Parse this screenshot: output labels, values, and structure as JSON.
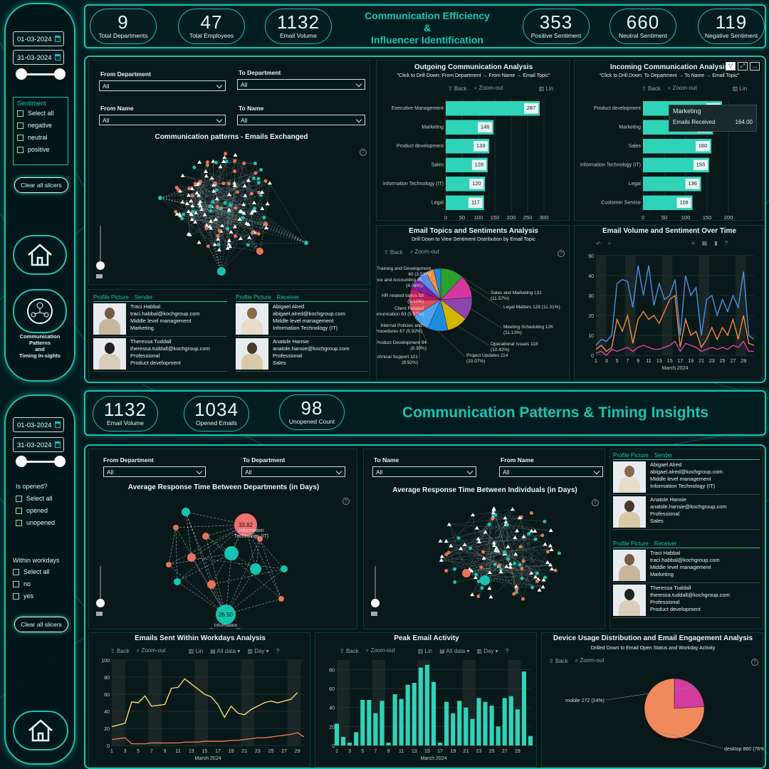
{
  "colors": {
    "accent": "#17c4b2",
    "bar": "#2fd3b8",
    "orange": "#f08a3e",
    "blue": "#4a90e2",
    "pink": "#e040a0",
    "yellow": "#f5d76e",
    "coral": "#e8735a"
  },
  "top": {
    "sidebar": {
      "date_from": "01-03-2024",
      "date_to": "31-03-2024",
      "sentiment_title": "Sentiment",
      "options": [
        "Select all",
        "negative",
        "neutral",
        "positive"
      ],
      "clear": "Clear all slicers",
      "nav_label_lines": [
        "Communication",
        "Patterns",
        "and",
        "Timing In-sights"
      ],
      "home_icon": "home-icon",
      "nav_icon": "network-icon"
    },
    "kpis_left": [
      {
        "v": "9",
        "l": "Total Departments"
      },
      {
        "v": "47",
        "l": "Total Employees"
      },
      {
        "v": "1132",
        "l": "Email Volume"
      }
    ],
    "title_lines": [
      "Communication Efficiency",
      "&",
      "Influencer Identification"
    ],
    "kpis_right": [
      {
        "v": "353",
        "l": "Positive Sentiment"
      },
      {
        "v": "660",
        "l": "Neutral Sentiment"
      },
      {
        "v": "119",
        "l": "Negative Sentiment"
      }
    ],
    "filters": {
      "from_department": "From Department",
      "to_department": "To Department",
      "from_name": "From Name",
      "to_name": "To Name",
      "all": "All"
    },
    "network_title": "Communication patterns - Emails Exchanged",
    "sender_table": {
      "h1": "Profile Picture",
      "h2": "Sender",
      "rows": [
        [
          "Traci Habbal",
          "traci.habbal@kochgroup.com",
          "Middle level management",
          "Marketing"
        ],
        [
          "Theressa Tuddall",
          "theressa.tuddall@kochgroup.com",
          "Professional",
          "Product development"
        ]
      ]
    },
    "receiver_table": {
      "h1": "Profile Picture",
      "h2": "Receiver",
      "rows": [
        [
          "Abigael Alred",
          "abigael.alred@kochgroup.com",
          "Middle level management",
          "Information Technology (IT)"
        ],
        [
          "Anatole Hansie",
          "anatole.hansie@kochgroup.com",
          "Professional",
          "Sales"
        ]
      ]
    },
    "outgoing": {
      "title": "Outgoing Communication Analysis",
      "sub": "\"Click to Drill Down: From Department → From Name → Email Topic\"",
      "back": "Back",
      "zoom": "Zoom-out",
      "lin": "Lin"
    },
    "incoming": {
      "title": "Incoming Communication Analysis",
      "sub": "\"Click to Drill Down: To Department → To Name → Email Topic\"",
      "back": "Back",
      "zoom": "Zoom-out",
      "lin": "Lin",
      "tooltip_title": "Marketing",
      "tooltip_label": "Emails Received",
      "tooltip_value": "164.00"
    },
    "topics": {
      "title": "Email Topics and Sentiments Analysis",
      "sub": "Drill Down to View Sentiment Distribution by Email Topic",
      "back": "Back",
      "zoom": "Zoom-out"
    },
    "volume": {
      "title": "Email Volume and Sentiment Over Time",
      "xlabel": "March 2024"
    }
  },
  "bottom": {
    "sidebar": {
      "date_from": "01-03-2024",
      "date_to": "31-03-2024",
      "opened_title": "Is opened?",
      "opened_options": [
        "Select all",
        "opened",
        "unopened"
      ],
      "workdays_title": "Within workdays",
      "workdays_options": [
        "Select all",
        "no",
        "yes"
      ],
      "clear": "Clear all slicers",
      "home_icon": "home-icon"
    },
    "kpis": [
      {
        "v": "1132",
        "l": "Email Volume"
      },
      {
        "v": "1034",
        "l": "Opened Emails"
      },
      {
        "v": "98",
        "l": "Unopened Count"
      }
    ],
    "title": "Communication Patterns & Timing Insights",
    "dept_panel": {
      "from": "From Department",
      "to": "To Department",
      "all": "All",
      "title": "Average Response Time Between Departments (in Days)",
      "node1_val": "33.82",
      "node1_label_lines": [
        "Information",
        "Technology (IT)"
      ],
      "node2_val": "26.50",
      "node2_label_lines": [
        "Information",
        "Technology (IT)"
      ],
      "node3_label": "Management"
    },
    "indiv_panel": {
      "to": "To Name",
      "from": "From Name",
      "all": "All",
      "title": "Average Response Time Between Individuals (in Days)"
    },
    "sender_table": {
      "h1": "Profile Picture",
      "h2": "Sender",
      "rows": [
        [
          "Abigael Alred",
          "abigael.alred@kochgroup.com",
          "Middle level management",
          "Information Technology (IT)"
        ],
        [
          "Anatole Hansie",
          "anatole.hansie@kochgroup.com",
          "Professional",
          "Sales"
        ]
      ]
    },
    "receiver_table": {
      "h1": "Profile Picture",
      "h2": "Receiver",
      "rows": [
        [
          "Traci Habbal",
          "traci.habbal@kochgroup.com",
          "Middle level management",
          "Marketing"
        ],
        [
          "Theressa Tuddall",
          "theressa.tuddall@kochgroup.com",
          "Professional",
          "Product development"
        ]
      ]
    },
    "workdays": {
      "title": "Emails Sent Within Workdays Analysis",
      "back": "Back",
      "zoom": "Zoom-out",
      "lin": "Lin",
      "alldata": "All data",
      "day": "Day",
      "xlabel": "March 2024"
    },
    "peak": {
      "title": "Peak Email Activity",
      "back": "Back",
      "zoom": "Zoom-out",
      "lin": "Lin",
      "alldata": "All data",
      "day": "Day",
      "xlabel": "March 2024"
    },
    "device": {
      "title": "Device Usage Distribution and Email Engagement Analysis",
      "sub": "Drilled Down to Email Open Status and Workday Activity",
      "back": "Back",
      "zoom": "Zoom-out"
    }
  },
  "chart_data": [
    {
      "type": "bar",
      "id": "outgoing",
      "categories": [
        "Executive Management",
        "Marketing",
        "Product development",
        "Sales",
        "Information Technology (IT)",
        "Legal"
      ],
      "values": [
        287,
        146,
        133,
        128,
        120,
        117
      ],
      "xlim": [
        0,
        300
      ],
      "xticks": [
        0,
        50,
        100,
        150,
        200,
        250,
        300
      ]
    },
    {
      "type": "bar",
      "id": "incoming",
      "categories": [
        "Product development",
        "Marketing",
        "Sales",
        "Information Technology (IT)",
        "Legal",
        "Customer Service"
      ],
      "values": [
        185,
        164,
        160,
        155,
        136,
        116
      ],
      "xlim": [
        0,
        200
      ],
      "xticks": [
        0,
        50,
        100,
        150,
        200
      ]
    },
    {
      "type": "pie",
      "id": "topics",
      "labels": [
        "Sales and Marketing 131 (11.57%)",
        "Legal Matters 128 (11.31%)",
        "Meeting Scheduling 126 (11.13%)",
        "Operational Issues 118 (10.42%)",
        "Project Updates 114 (10.07%)",
        "Technical Support 101 (8.92%)",
        "Product Development 94 (8.30%)",
        "Internal Policies and Procedures 67 (5.92%)",
        "Client Related Communication 63 (5.57%)",
        "HR related topics 58 (5.12%)",
        "Finance and Accounting 46 (4.06%)",
        "Training and Development 40 (3.53%)"
      ],
      "values": [
        131,
        128,
        126,
        118,
        114,
        101,
        94,
        67,
        63,
        58,
        46,
        40
      ],
      "colors": [
        "#2ca02c",
        "#d6379f",
        "#8e44ad",
        "#d4b400",
        "#1f8be0",
        "#4aa3f0",
        "#e04a5a",
        "#c2185b",
        "#7b1fa2",
        "#5b8def",
        "#f0923e",
        "#1e88e5"
      ]
    },
    {
      "type": "line",
      "id": "volume",
      "x": [
        1,
        2,
        3,
        4,
        5,
        6,
        7,
        8,
        9,
        10,
        11,
        12,
        13,
        14,
        15,
        16,
        17,
        18,
        19,
        20,
        21,
        22,
        23,
        24,
        25,
        26,
        27,
        28,
        29,
        30,
        31
      ],
      "xticks": [
        1,
        3,
        5,
        7,
        9,
        11,
        13,
        15,
        17,
        19,
        21,
        23,
        25,
        27,
        29
      ],
      "ylim": [
        0,
        50
      ],
      "yticks": [
        0,
        10,
        20,
        30,
        40,
        50
      ],
      "series": [
        {
          "color": "#4a90e2",
          "values": [
            5,
            8,
            7,
            10,
            36,
            38,
            37,
            24,
            45,
            30,
            45,
            25,
            36,
            28,
            30,
            38,
            10,
            40,
            30,
            34,
            10,
            28,
            30,
            20,
            28,
            22,
            30,
            24,
            42,
            10,
            8
          ]
        },
        {
          "color": "#f08a3e",
          "values": [
            3,
            5,
            2,
            4,
            18,
            12,
            20,
            6,
            18,
            22,
            18,
            20,
            16,
            22,
            28,
            30,
            4,
            18,
            10,
            12,
            4,
            8,
            14,
            8,
            14,
            10,
            18,
            8,
            20,
            6,
            5
          ]
        },
        {
          "color": "#e040a0",
          "values": [
            1,
            2,
            0,
            3,
            2,
            3,
            4,
            2,
            4,
            5,
            4,
            3,
            3,
            4,
            5,
            7,
            2,
            6,
            5,
            4,
            2,
            3,
            4,
            3,
            4,
            3,
            5,
            4,
            7,
            2,
            2
          ]
        }
      ]
    },
    {
      "type": "line",
      "id": "workdays",
      "x": [
        1,
        2,
        3,
        4,
        5,
        6,
        7,
        8,
        9,
        10,
        11,
        12,
        13,
        14,
        15,
        16,
        17,
        18,
        19,
        20,
        21,
        22,
        23,
        24,
        25,
        26,
        27,
        28,
        29,
        30
      ],
      "xticks": [
        1,
        3,
        5,
        7,
        9,
        11,
        13,
        15,
        17,
        19,
        21,
        23,
        25,
        27,
        29
      ],
      "ylim": [
        0,
        100
      ],
      "yticks": [
        0,
        20,
        40,
        60,
        80,
        100
      ],
      "series": [
        {
          "color": "#f5d76e",
          "values": [
            22,
            24,
            26,
            51,
            50,
            58,
            46,
            47,
            48,
            67,
            68,
            78,
            72,
            66,
            60,
            57,
            48,
            33,
            46,
            38,
            36,
            42,
            46,
            50,
            52,
            50,
            52,
            54,
            62,
            null
          ]
        },
        {
          "color": "#e8735a",
          "values": [
            7,
            8,
            9,
            2,
            2,
            2,
            3,
            3,
            3,
            3,
            3,
            4,
            4,
            4,
            5,
            5,
            5,
            5,
            6,
            6,
            7,
            8,
            9,
            9,
            10,
            11,
            12,
            13,
            15,
            10
          ]
        }
      ]
    },
    {
      "type": "bar",
      "id": "peak",
      "x": [
        1,
        2,
        3,
        4,
        5,
        6,
        7,
        8,
        9,
        10,
        11,
        12,
        13,
        14,
        15,
        16,
        17,
        18,
        19,
        20,
        21,
        22,
        23,
        24,
        25,
        26,
        27,
        28,
        29,
        30,
        31
      ],
      "xticks": [
        1,
        3,
        5,
        7,
        9,
        11,
        13,
        15,
        17,
        19,
        21,
        23,
        25,
        27,
        29
      ],
      "ylim": [
        0,
        90
      ],
      "yticks": [
        0,
        20,
        40,
        60,
        80
      ],
      "values": [
        23,
        9,
        3,
        14,
        48,
        48,
        34,
        47,
        3,
        54,
        49,
        64,
        66,
        82,
        85,
        67,
        3,
        46,
        34,
        47,
        40,
        28,
        50,
        46,
        42,
        20,
        50,
        52,
        38,
        78,
        10
      ]
    },
    {
      "type": "pie",
      "id": "device",
      "labels": [
        "mobile 272 (24%)",
        "desktop 860 (76%)"
      ],
      "values": [
        272,
        860
      ],
      "colors": [
        "#d23c9e",
        "#f08a5a"
      ]
    }
  ]
}
